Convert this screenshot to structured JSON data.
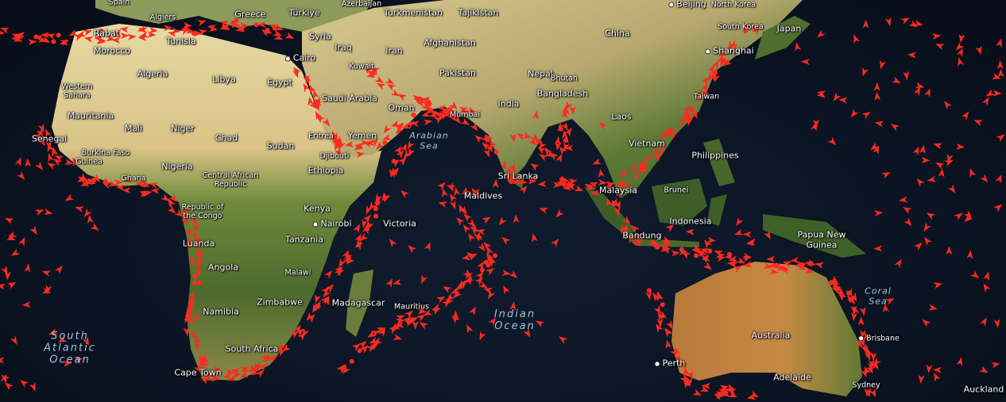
{
  "map": {
    "colors": {
      "ocean": "#0b1320",
      "desert": "#d8c88a",
      "vegetation": "#4d6b2e",
      "ship": "#ff2a1f",
      "label": "#ffffff",
      "ocean_label": "#9fc3df"
    },
    "marker_icon": "ship-arrow-icon",
    "countries": [
      {
        "id": "spain",
        "name": "Spain"
      },
      {
        "id": "algiers",
        "name": "Algiers"
      },
      {
        "id": "greece",
        "name": "Greece"
      },
      {
        "id": "turkiye",
        "name": "Türkiye"
      },
      {
        "id": "azerbaijan",
        "name": "Azerbaijan"
      },
      {
        "id": "turkmenistan",
        "name": "Turkmenistan"
      },
      {
        "id": "tajikistan",
        "name": "Tajikistan"
      },
      {
        "id": "north-korea",
        "name": "North Korea"
      },
      {
        "id": "rabat",
        "name": "Rabat"
      },
      {
        "id": "morocco",
        "name": "Morocco"
      },
      {
        "id": "tunisia",
        "name": "Tunisia"
      },
      {
        "id": "syria",
        "name": "Syria"
      },
      {
        "id": "iraq",
        "name": "Iraq"
      },
      {
        "id": "iran",
        "name": "Iran"
      },
      {
        "id": "afghanistan",
        "name": "Afghanistan"
      },
      {
        "id": "china",
        "name": "China"
      },
      {
        "id": "south-korea",
        "name": "South Korea"
      },
      {
        "id": "japan",
        "name": "Japan"
      },
      {
        "id": "algeria",
        "name": "Algeria"
      },
      {
        "id": "libya",
        "name": "Libya"
      },
      {
        "id": "egypt",
        "name": "Egypt"
      },
      {
        "id": "kuwait",
        "name": "Kuwait"
      },
      {
        "id": "pakistan",
        "name": "Pakistan"
      },
      {
        "id": "nepal",
        "name": "Nepal"
      },
      {
        "id": "bhutan",
        "name": "Bhutan"
      },
      {
        "id": "bangladesh",
        "name": "Bangladesh"
      },
      {
        "id": "taiwan",
        "name": "Taiwan"
      },
      {
        "id": "western-sahara",
        "name": "Western\nSahara"
      },
      {
        "id": "saudi-arabia",
        "name": "Saudi Arabia"
      },
      {
        "id": "oman",
        "name": "Oman"
      },
      {
        "id": "india",
        "name": "India"
      },
      {
        "id": "mumbai",
        "name": "Mumbai"
      },
      {
        "id": "mauritania",
        "name": "Mauritania"
      },
      {
        "id": "mali",
        "name": "Mali"
      },
      {
        "id": "niger",
        "name": "Niger"
      },
      {
        "id": "chad",
        "name": "Chad"
      },
      {
        "id": "sudan",
        "name": "Sudan"
      },
      {
        "id": "yemen",
        "name": "Yemen"
      },
      {
        "id": "eritrea",
        "name": "Eritrea"
      },
      {
        "id": "laos",
        "name": "Laos"
      },
      {
        "id": "senegal",
        "name": "Senegal"
      },
      {
        "id": "vietnam",
        "name": "Vietnam"
      },
      {
        "id": "djibouti",
        "name": "Djibouti"
      },
      {
        "id": "philippines",
        "name": "Philippines"
      },
      {
        "id": "burkina-faso",
        "name": "Burkina Faso"
      },
      {
        "id": "guinea",
        "name": "Guinea"
      },
      {
        "id": "nigeria",
        "name": "Nigeria"
      },
      {
        "id": "ethiopia",
        "name": "Ethiopia"
      },
      {
        "id": "ghana",
        "name": "Ghana"
      },
      {
        "id": "central-african-republic",
        "name": "Central African\nRepublic"
      },
      {
        "id": "sri-lanka",
        "name": "Sri Lanka"
      },
      {
        "id": "malaysia",
        "name": "Malaysia"
      },
      {
        "id": "brunei",
        "name": "Brunei"
      },
      {
        "id": "maldives",
        "name": "Maldives"
      },
      {
        "id": "republic-of-the-congo",
        "name": "Republic of\nthe Congo"
      },
      {
        "id": "kenya",
        "name": "Kenya"
      },
      {
        "id": "victoria",
        "name": "Victoria"
      },
      {
        "id": "indonesia",
        "name": "Indonesia"
      },
      {
        "id": "papua-new-guinea",
        "name": "Papua New\nGuinea"
      },
      {
        "id": "tanzania",
        "name": "Tanzania"
      },
      {
        "id": "luanda",
        "name": "Luanda"
      },
      {
        "id": "bandung",
        "name": "Bandung"
      },
      {
        "id": "angola",
        "name": "Angola"
      },
      {
        "id": "malawi",
        "name": "Malawi"
      },
      {
        "id": "zimbabwe",
        "name": "Zimbabwe"
      },
      {
        "id": "madagascar",
        "name": "Madagascar"
      },
      {
        "id": "mauritius",
        "name": "Mauritius"
      },
      {
        "id": "namibia",
        "name": "Namibia"
      },
      {
        "id": "australia",
        "name": "Australia"
      },
      {
        "id": "south-africa",
        "name": "South Africa"
      },
      {
        "id": "cape-town",
        "name": "Cape Town"
      },
      {
        "id": "adelaide",
        "name": "Adelaide"
      },
      {
        "id": "sydney",
        "name": "Sydney"
      },
      {
        "id": "auckland",
        "name": "Auckland"
      }
    ],
    "cities": [
      {
        "id": "beijing",
        "name": "Beijing"
      },
      {
        "id": "cairo",
        "name": "Cairo"
      },
      {
        "id": "shanghai",
        "name": "Shanghai"
      },
      {
        "id": "nairobi",
        "name": "Nairobi"
      },
      {
        "id": "perth",
        "name": "Perth"
      },
      {
        "id": "brisbane",
        "name": "Brisbane"
      }
    ],
    "water_bodies": [
      {
        "id": "arabian-sea",
        "name": "Arabian\nSea"
      },
      {
        "id": "coral-sea",
        "name": "Coral\nSea"
      },
      {
        "id": "indian-ocean",
        "name": "Indian\nOcean"
      },
      {
        "id": "south-atlantic-ocean",
        "name": "South\nAtlantic\nOcean"
      }
    ]
  }
}
